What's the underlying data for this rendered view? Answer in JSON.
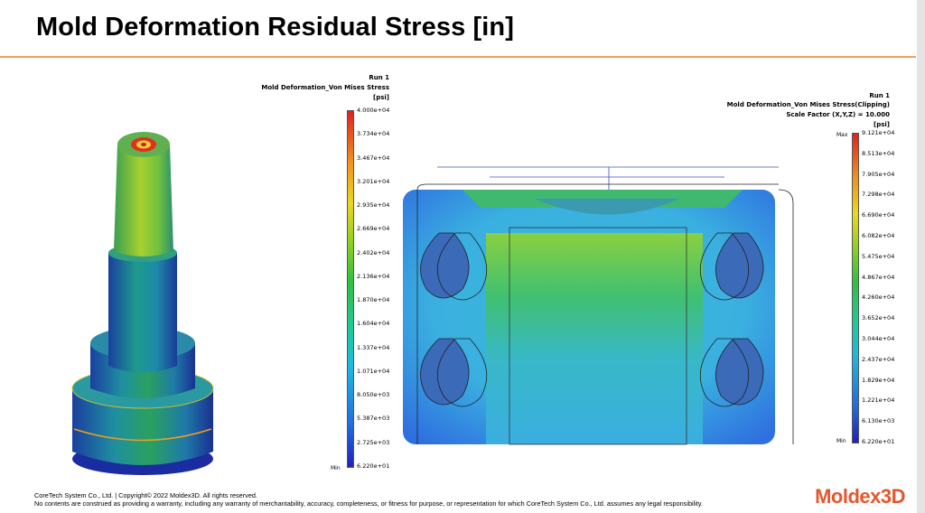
{
  "slide": {
    "title": "Mold Deformation Residual Stress [in]"
  },
  "left_plot": {
    "header": [
      "Run 1",
      "Mold Deformation_Von Mises Stress",
      "[psi]"
    ],
    "min_label": "Min",
    "ticks": [
      "4.000e+04",
      "3.734e+04",
      "3.467e+04",
      "3.201e+04",
      "2.935e+04",
      "2.669e+04",
      "2.402e+04",
      "2.136e+04",
      "1.870e+04",
      "1.604e+04",
      "1.337e+04",
      "1.071e+04",
      "8.050e+03",
      "5.387e+03",
      "2.725e+03",
      "6.220e+01"
    ]
  },
  "right_plot": {
    "header": [
      "Run 1",
      "Mold Deformation_Von Mises Stress(Clipping)",
      "Scale Factor (X,Y,Z) = 10.000",
      "[psi]"
    ],
    "max_label": "Max",
    "min_label": "Min",
    "ticks": [
      "9.121e+04",
      "8.513e+04",
      "7.905e+04",
      "7.298e+04",
      "6.690e+04",
      "6.082e+04",
      "5.475e+04",
      "4.867e+04",
      "4.260e+04",
      "3.652e+04",
      "3.044e+04",
      "2.437e+04",
      "1.829e+04",
      "1.221e+04",
      "6.130e+03",
      "6.220e+01"
    ]
  },
  "footer": {
    "line1": "CoreTech System Co., Ltd. | Copyright© 2022 Moldex3D. All rights reserved.",
    "line2": "No contents are construed as providing a warranty, including any warranty of merchantability, accuracy, completeness, or fitness for purpose, or representation for which CoreTech System Co., Ltd. assumes any legal responsibility."
  },
  "brand": {
    "part1": "Moldex",
    "part2": "3D"
  },
  "colors": {
    "accent_rule": "#f0a060",
    "brand_red": "#e4572e"
  }
}
